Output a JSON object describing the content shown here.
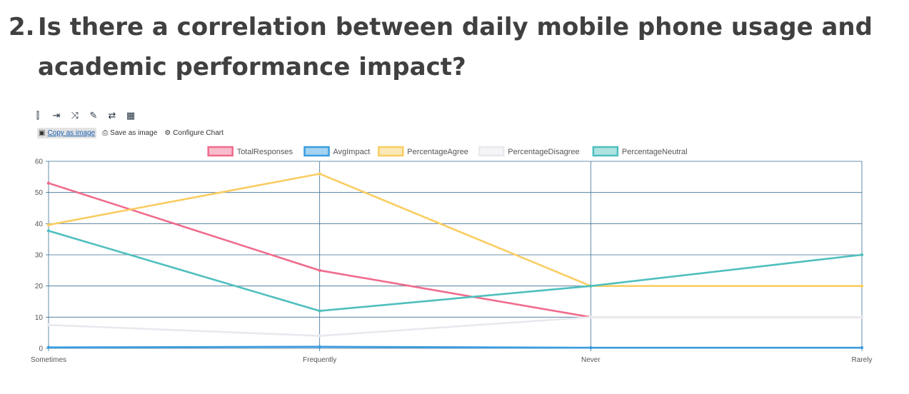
{
  "heading": {
    "number": "2.",
    "line1": "Is there a correlation between daily mobile phone usage and",
    "line2": "academic performance impact?"
  },
  "toolbar": {
    "icons": [
      "insert-column-left-icon",
      "insert-column-right-icon",
      "transpose-icon",
      "rename-icon",
      "swap-icon",
      "table-icon"
    ]
  },
  "actions": {
    "copy_label": "Copy as image",
    "save_label": "Save as image",
    "configure_label": "Configure Chart"
  },
  "chart_data": {
    "type": "line",
    "categories": [
      "Sometimes",
      "Frequently",
      "Never",
      "Rarely"
    ],
    "ylim": [
      0,
      60
    ],
    "yticks": [
      0,
      10,
      20,
      30,
      40,
      50,
      60
    ],
    "grid": true,
    "legend_position": "top",
    "series": [
      {
        "name": "TotalResponses",
        "color": "#f06b8b",
        "values": [
          53,
          25,
          10,
          10
        ]
      },
      {
        "name": "AvgImpact",
        "color": "#3a9de0",
        "values": [
          0.3,
          0.5,
          0.2,
          0.2
        ]
      },
      {
        "name": "PercentageAgree",
        "color": "#f9cd62",
        "values": [
          39.6,
          56,
          20,
          20
        ]
      },
      {
        "name": "PercentageDisagree",
        "color": "#e8e9ee",
        "values": [
          7.5,
          4,
          10,
          10
        ]
      },
      {
        "name": "PercentageNeutral",
        "color": "#4fbfbe",
        "values": [
          37.7,
          12,
          20,
          30
        ]
      }
    ]
  }
}
